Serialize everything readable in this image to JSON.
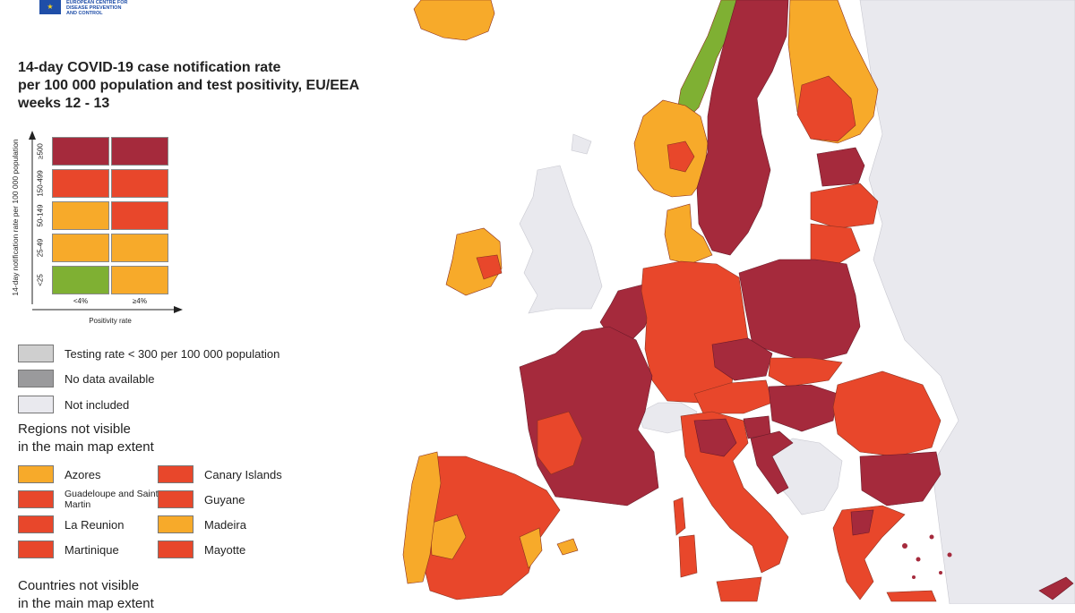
{
  "header": {
    "org_line1": "EUROPEAN CENTRE FOR",
    "org_line2": "DISEASE PREVENTION",
    "org_line3": "AND CONTROL"
  },
  "title": {
    "line1": "14-day COVID-19 case notification rate",
    "line2": "per 100 000 population and test positivity, EU/EEA",
    "line3": "weeks 12 - 13"
  },
  "matrix": {
    "y_axis_title": "14-day notification rate per 100 000 population",
    "y_ticks": [
      "≥500",
      "150-499",
      "50-149",
      "25-49",
      "<25"
    ],
    "x_ticks": [
      "<4%",
      "≥4%"
    ],
    "x_axis_title": "Positivity rate",
    "cells": [
      [
        "dark_red",
        "dark_red"
      ],
      [
        "red",
        "red"
      ],
      [
        "orange",
        "red"
      ],
      [
        "orange",
        "orange"
      ],
      [
        "green",
        "orange"
      ]
    ]
  },
  "colors": {
    "dark_red": "#a52a3c",
    "red": "#e8472b",
    "orange": "#f7aa2a",
    "green": "#7fb033",
    "grey_testing": "#cfcfcf",
    "grey_nodata": "#9a9a9c",
    "not_included": "#e9e9ee",
    "sea": "#ffffff"
  },
  "legend": {
    "testing": "Testing rate < 300 per 100 000 population",
    "no_data": "No data available",
    "not_included": "Not included"
  },
  "regions_section": {
    "line1": "Regions not visible",
    "line2": "in the main map extent",
    "items": [
      {
        "label": "Azores",
        "color": "orange"
      },
      {
        "label": "Canary Islands",
        "color": "red"
      },
      {
        "label": "Guadeloupe and Saint Martin",
        "color": "red"
      },
      {
        "label": "Guyane",
        "color": "red"
      },
      {
        "label": "La Reunion",
        "color": "red"
      },
      {
        "label": "Madeira",
        "color": "orange"
      },
      {
        "label": "Martinique",
        "color": "red"
      },
      {
        "label": "Mayotte",
        "color": "red"
      }
    ]
  },
  "countries_section": {
    "line1": "Countries not visible",
    "line2": "in the main map extent"
  }
}
